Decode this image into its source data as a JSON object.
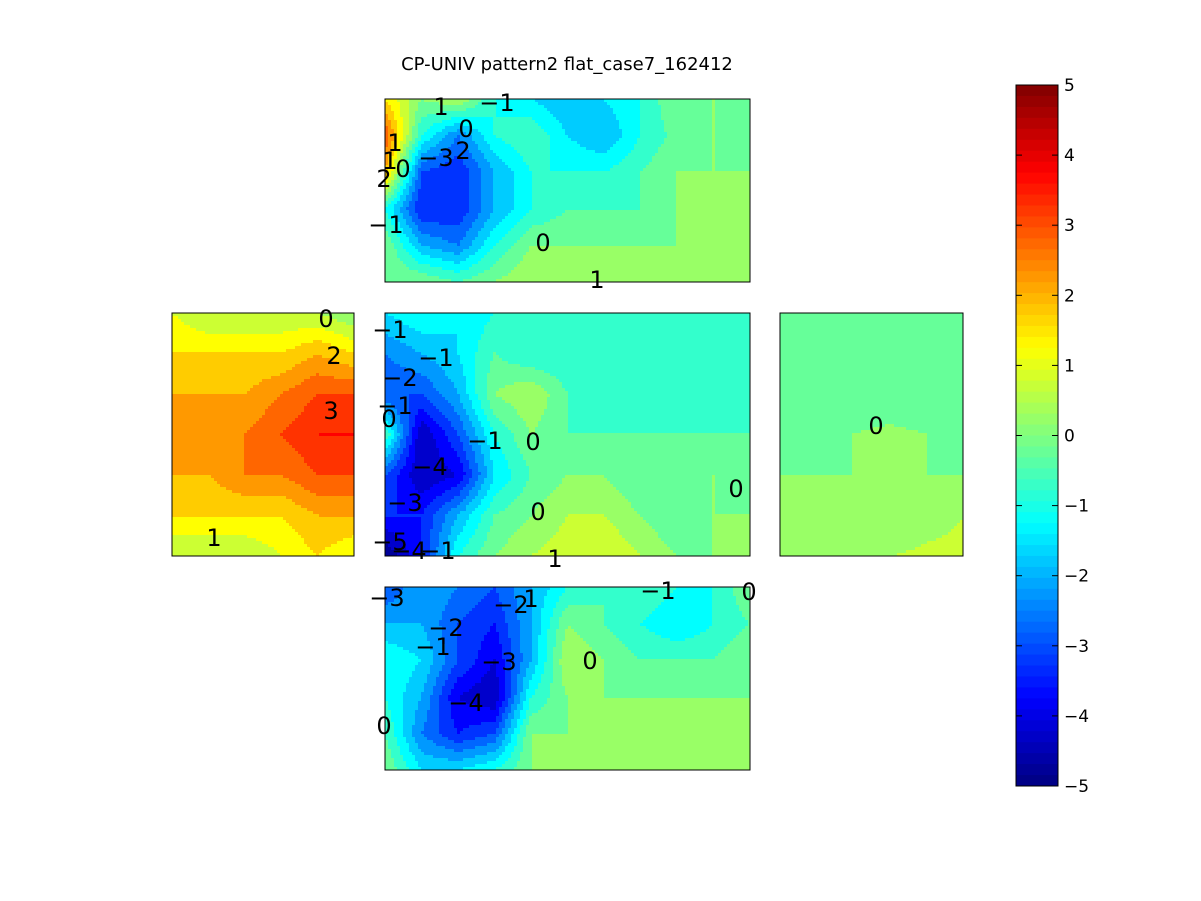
{
  "chart_data": {
    "type": "heatmap",
    "title": "CP-UNIV pattern2 flat_case7_162412",
    "colormap": "jet",
    "clim": [
      -5,
      5
    ],
    "colorbar": {
      "position": "right",
      "ticks": [
        "5",
        "4",
        "3",
        "2",
        "1",
        "0",
        "-1",
        "-2",
        "-3",
        "-4",
        "-5"
      ]
    },
    "panels": [
      {
        "name": "top",
        "grid": [
          [
            1.5,
            0.0,
            0.5,
            -1.0,
            -1.5,
            -2.0,
            -1.5,
            -1.0,
            0.0,
            0.0,
            -0.3
          ],
          [
            3.0,
            -1.0,
            -2.5,
            -1.0,
            -0.5,
            -1.5,
            -2.0,
            -1.0,
            -0.3,
            0.0,
            -0.3
          ],
          [
            2.0,
            -3.0,
            -3.5,
            -2.0,
            -1.0,
            -1.0,
            -1.0,
            -0.5,
            0.0,
            0.0,
            0.0
          ],
          [
            -1.0,
            -3.5,
            -3.5,
            -2.0,
            -1.0,
            -0.5,
            -0.5,
            -0.5,
            0.0,
            0.0,
            0.0
          ],
          [
            0.0,
            -2.0,
            -2.5,
            -1.0,
            0.0,
            0.0,
            0.0,
            0.0,
            0.0,
            0.0,
            0.0
          ],
          [
            0.0,
            0.0,
            -0.5,
            0.0,
            0.5,
            0.5,
            0.5,
            0.0,
            0.0,
            0.0,
            0.5
          ]
        ],
        "labels": [
          {
            "text": "1"
          },
          {
            "text": "-1"
          },
          {
            "text": "0"
          },
          {
            "text": "1"
          },
          {
            "text": "-3"
          },
          {
            "text": "2"
          },
          {
            "text": "1"
          },
          {
            "text": "2"
          },
          {
            "text": "0"
          },
          {
            "text": "-1"
          },
          {
            "text": "0"
          },
          {
            "text": "1"
          }
        ]
      },
      {
        "name": "left",
        "grid": [
          [
            1.0,
            0.5,
            0.5,
            0.5,
            0.5,
            0.0
          ],
          [
            1.5,
            1.5,
            1.5,
            1.5,
            2.0,
            1.5
          ],
          [
            2.0,
            2.0,
            2.0,
            2.5,
            3.0,
            3.0
          ],
          [
            2.0,
            2.0,
            2.5,
            3.0,
            3.5,
            3.5
          ],
          [
            2.0,
            2.0,
            2.5,
            2.5,
            3.0,
            3.0
          ],
          [
            1.5,
            1.5,
            1.5,
            1.5,
            2.0,
            2.0
          ],
          [
            0.5,
            0.5,
            0.5,
            1.0,
            1.5,
            1.0
          ]
        ],
        "labels": [
          {
            "text": "0"
          },
          {
            "text": "2"
          },
          {
            "text": "3"
          },
          {
            "text": "1"
          }
        ]
      },
      {
        "name": "center",
        "grid": [
          [
            -1.5,
            -1.0,
            -1.5,
            -1.0,
            -1.0,
            -1.0,
            -0.8,
            -0.8,
            -0.8,
            -0.8,
            -0.8
          ],
          [
            -2.5,
            -2.0,
            -1.5,
            -0.5,
            -1.0,
            -1.0,
            -1.0,
            -1.0,
            -1.0,
            -1.0,
            -1.0
          ],
          [
            -3.0,
            -3.0,
            -2.0,
            0.0,
            0.5,
            -0.5,
            -0.8,
            -0.8,
            -0.8,
            -0.8,
            -0.8
          ],
          [
            -0.5,
            -4.5,
            -3.0,
            -1.0,
            0.0,
            -0.5,
            -0.5,
            -0.5,
            -0.5,
            -0.5,
            -0.5
          ],
          [
            -3.0,
            -4.5,
            -4.0,
            -1.5,
            -0.5,
            0.0,
            0.0,
            -0.5,
            -0.5,
            0.0,
            -0.5
          ],
          [
            -3.5,
            -3.5,
            -2.0,
            -0.5,
            0.0,
            0.5,
            0.5,
            0.0,
            -0.5,
            0.0,
            0.0
          ],
          [
            -5.0,
            -3.5,
            -1.0,
            0.0,
            0.5,
            0.8,
            1.0,
            0.5,
            0.0,
            0.0,
            0.0
          ]
        ],
        "labels": [
          {
            "text": "-1"
          },
          {
            "text": "-1"
          },
          {
            "text": "-2"
          },
          {
            "text": "-1"
          },
          {
            "text": "0"
          },
          {
            "text": "-1"
          },
          {
            "text": "0"
          },
          {
            "text": "-4"
          },
          {
            "text": "-3"
          },
          {
            "text": "0"
          },
          {
            "text": "0"
          },
          {
            "text": "-5"
          },
          {
            "text": "-4"
          },
          {
            "text": "-1"
          },
          {
            "text": "1"
          }
        ]
      },
      {
        "name": "right",
        "grid": [
          [
            -0.5,
            -0.5,
            -0.5,
            -0.5,
            -0.5,
            -0.5
          ],
          [
            -0.5,
            -0.5,
            -0.5,
            -0.5,
            -0.5,
            -0.5
          ],
          [
            -0.3,
            -0.3,
            -0.3,
            -0.3,
            -0.3,
            -0.3
          ],
          [
            -0.3,
            -0.3,
            0.0,
            0.1,
            0.0,
            -0.3
          ],
          [
            0.0,
            0.0,
            0.0,
            0.0,
            0.0,
            0.0
          ],
          [
            0.0,
            0.0,
            0.0,
            0.0,
            0.3,
            0.5
          ],
          [
            0.0,
            0.0,
            0.0,
            0.5,
            0.6,
            0.6
          ]
        ],
        "labels": [
          {
            "text": "0"
          }
        ]
      },
      {
        "name": "bottom",
        "grid": [
          [
            -3.0,
            -2.0,
            -2.5,
            -3.0,
            -2.0,
            -1.0,
            -0.5,
            -0.5,
            -1.0,
            -1.0,
            0.0
          ],
          [
            -2.0,
            -2.0,
            -3.0,
            -3.5,
            -2.0,
            0.0,
            -0.5,
            -1.0,
            -1.5,
            -1.0,
            -0.5
          ],
          [
            -1.0,
            -1.5,
            -3.0,
            -4.0,
            -2.0,
            0.5,
            0.0,
            -0.5,
            -0.5,
            -0.5,
            0.0
          ],
          [
            -1.0,
            -2.0,
            -4.0,
            -4.5,
            -1.0,
            0.0,
            0.0,
            0.0,
            0.0,
            0.0,
            0.0
          ],
          [
            -0.5,
            -2.5,
            -3.5,
            -3.0,
            0.0,
            0.0,
            0.0,
            0.0,
            0.0,
            0.0,
            0.0
          ],
          [
            0.0,
            -1.5,
            -1.5,
            -1.0,
            0.0,
            0.0,
            0.0,
            0.0,
            0.0,
            0.0,
            0.0
          ]
        ],
        "labels": [
          {
            "text": "-3"
          },
          {
            "text": "-2"
          },
          {
            "text": "1"
          },
          {
            "text": "-1"
          },
          {
            "text": "0"
          },
          {
            "text": "-2"
          },
          {
            "text": "-1"
          },
          {
            "text": "-3"
          },
          {
            "text": "0"
          },
          {
            "text": "-4"
          },
          {
            "text": "0"
          }
        ]
      }
    ]
  }
}
